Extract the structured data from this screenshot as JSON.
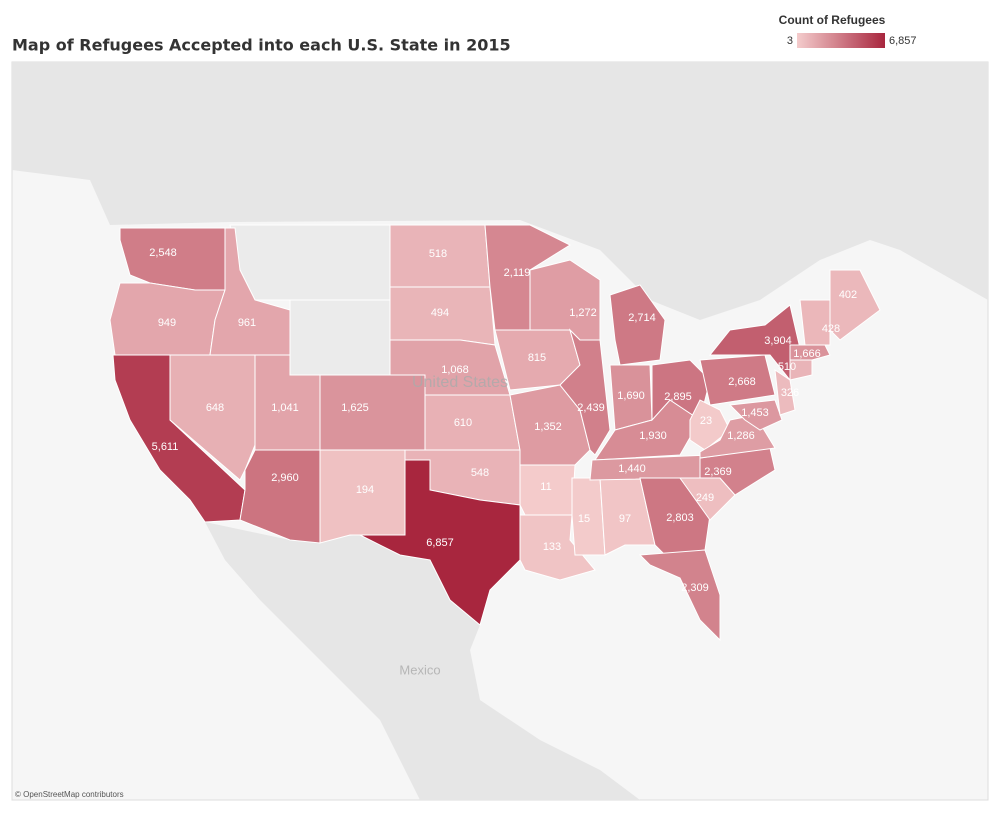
{
  "chart_data": {
    "type": "choropleth",
    "title": "Map of Refugees Accepted into each U.S. State in 2015",
    "legend": {
      "title": "Count of Refugees",
      "ticks": [
        3,
        {
          "value": 6857,
          "label": "6,857"
        }
      ]
    },
    "color_range": [
      "#f4cccc",
      "#a8263e"
    ],
    "values": [
      2548,
      949,
      5611,
      648,
      961,
      1041,
      2960,
      1625,
      194,
      518,
      494,
      1068,
      610,
      548,
      6857,
      2119,
      815,
      1352,
      11,
      133,
      1272,
      2439,
      15,
      97,
      2714,
      1690,
      1930,
      1440,
      2895,
      2803,
      2309,
      249,
      2369,
      23,
      1286,
      2668,
      3904,
      1453,
      326,
      510,
      1666,
      428,
      402
    ],
    "value_labels": [
      "2,548",
      "949",
      "5,611",
      "648",
      "961",
      "1,041",
      "2,960",
      "1,625",
      "194",
      "518",
      "494",
      "1,068",
      "610",
      "548",
      "6,857",
      "2,119",
      "815",
      "1,352",
      "11",
      "133",
      "1,272",
      "2,439",
      "15",
      "97",
      "2,714",
      "1,690",
      "1,930",
      "1,440",
      "2,895",
      "2,803",
      "2,309",
      "249",
      "2,369",
      "23",
      "1,286",
      "2,668",
      "3,904",
      "1,453",
      "326",
      "510",
      "1,666",
      "428",
      "402"
    ],
    "annotations": [
      "United States",
      "Mexico"
    ],
    "attribution": "© OpenStreetMap contributors"
  }
}
